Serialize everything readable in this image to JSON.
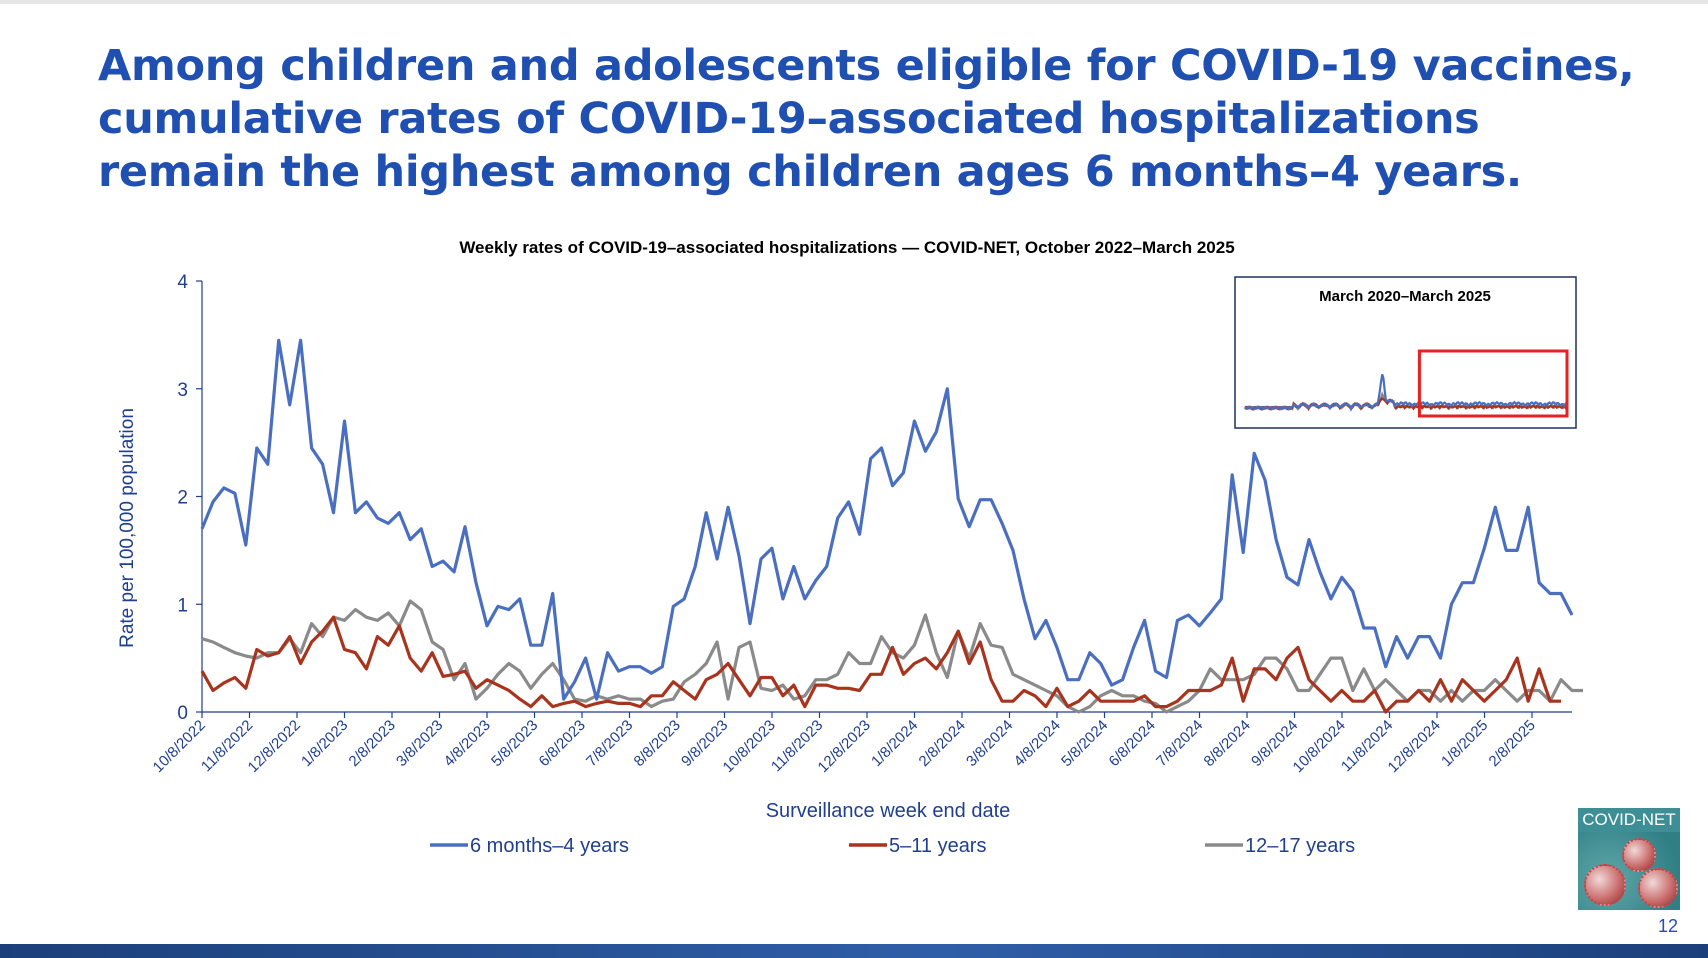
{
  "slide": {
    "headline_lines": [
      "Among children and adolescents eligible for COVID-19 vaccines,",
      "cumulative rates of COVID-19–associated hospitalizations",
      "remain the highest among children ages 6 months–4 years."
    ],
    "page_number": "12",
    "logo_text": "COVID-NET"
  },
  "chart_data": {
    "type": "line",
    "title": "Weekly rates of COVID-19–associated hospitalizations — COVID-NET, October 2022–March 2025",
    "xlabel": "Surveillance week end date",
    "ylabel": "Rate per 100,000 population",
    "ylim": [
      0,
      4
    ],
    "yticks": [
      "0",
      "1",
      "2",
      "3",
      "4"
    ],
    "xticks": [
      "10/8/2022",
      "11/8/2022",
      "12/8/2022",
      "1/8/2023",
      "2/8/2023",
      "3/8/2023",
      "4/8/2023",
      "5/8/2023",
      "6/8/2023",
      "7/8/2023",
      "8/8/2023",
      "9/8/2023",
      "10/8/2023",
      "11/8/2023",
      "12/8/2023",
      "1/8/2024",
      "2/8/2024",
      "3/8/2024",
      "4/8/2024",
      "5/8/2024",
      "6/8/2024",
      "7/8/2024",
      "8/8/2024",
      "9/8/2024",
      "10/8/2024",
      "11/8/2024",
      "12/8/2024",
      "1/8/2025",
      "2/8/2025"
    ],
    "legend_position": "bottom",
    "grid": false,
    "series": [
      {
        "name": "6 months–4 years",
        "color": "#4a6fc1",
        "values": [
          1.7,
          1.95,
          2.08,
          2.03,
          1.55,
          2.45,
          2.3,
          3.45,
          2.85,
          3.45,
          2.45,
          2.3,
          1.85,
          2.7,
          1.85,
          1.95,
          1.8,
          1.75,
          1.85,
          1.6,
          1.7,
          1.35,
          1.4,
          1.3,
          1.72,
          1.2,
          0.8,
          0.98,
          0.95,
          1.05,
          0.62,
          0.62,
          1.1,
          0.12,
          0.28,
          0.5,
          0.12,
          0.55,
          0.38,
          0.42,
          0.42,
          0.36,
          0.42,
          0.98,
          1.05,
          1.35,
          1.85,
          1.42,
          1.9,
          1.45,
          0.82,
          1.42,
          1.52,
          1.05,
          1.35,
          1.05,
          1.22,
          1.35,
          1.8,
          1.95,
          1.65,
          2.35,
          2.45,
          2.1,
          2.22,
          2.7,
          2.42,
          2.6,
          3.0,
          1.98,
          1.72,
          1.97,
          1.97,
          1.75,
          1.5,
          1.05,
          0.68,
          0.85,
          0.6,
          0.3,
          0.3,
          0.55,
          0.45,
          0.25,
          0.3,
          0.6,
          0.85,
          0.38,
          0.32,
          0.85,
          0.9,
          0.8,
          0.92,
          1.05,
          2.2,
          1.48,
          2.4,
          2.15,
          1.6,
          1.25,
          1.18,
          1.6,
          1.3,
          1.05,
          1.25,
          1.12,
          0.78,
          0.78,
          0.42,
          0.7,
          0.5,
          0.7,
          0.7,
          0.5,
          1.0,
          1.2,
          1.2,
          1.52,
          1.9,
          1.5,
          1.5,
          1.9,
          1.2,
          1.1,
          1.1,
          0.9
        ]
      },
      {
        "name": "5–11 years",
        "color": "#a8341e",
        "values": [
          0.38,
          0.2,
          0.27,
          0.32,
          0.22,
          0.58,
          0.52,
          0.55,
          0.7,
          0.45,
          0.65,
          0.75,
          0.88,
          0.58,
          0.55,
          0.4,
          0.7,
          0.62,
          0.8,
          0.5,
          0.38,
          0.55,
          0.33,
          0.35,
          0.38,
          0.22,
          0.3,
          0.25,
          0.2,
          0.12,
          0.05,
          0.15,
          0.05,
          0.08,
          0.1,
          0.05,
          0.08,
          0.1,
          0.08,
          0.08,
          0.05,
          0.15,
          0.15,
          0.28,
          0.2,
          0.12,
          0.3,
          0.35,
          0.45,
          0.3,
          0.15,
          0.32,
          0.32,
          0.15,
          0.25,
          0.05,
          0.25,
          0.25,
          0.22,
          0.22,
          0.2,
          0.35,
          0.35,
          0.6,
          0.35,
          0.45,
          0.5,
          0.4,
          0.55,
          0.75,
          0.45,
          0.65,
          0.3,
          0.1,
          0.1,
          0.2,
          0.15,
          0.05,
          0.22,
          0.05,
          0.1,
          0.2,
          0.1,
          0.1,
          0.1,
          0.1,
          0.15,
          0.05,
          0.05,
          0.1,
          0.2,
          0.2,
          0.2,
          0.25,
          0.5,
          0.1,
          0.4,
          0.4,
          0.3,
          0.5,
          0.6,
          0.3,
          0.2,
          0.1,
          0.2,
          0.1,
          0.1,
          0.2,
          0.0,
          0.1,
          0.1,
          0.2,
          0.1,
          0.3,
          0.1,
          0.3,
          0.2,
          0.1,
          0.2,
          0.3,
          0.5,
          0.1,
          0.4,
          0.1,
          0.1
        ]
      },
      {
        "name": "12–17 years",
        "color": "#8a8a8a",
        "values": [
          0.68,
          0.65,
          0.6,
          0.55,
          0.52,
          0.5,
          0.55,
          0.55,
          0.68,
          0.55,
          0.82,
          0.7,
          0.88,
          0.85,
          0.95,
          0.88,
          0.85,
          0.92,
          0.8,
          1.03,
          0.95,
          0.65,
          0.58,
          0.3,
          0.45,
          0.12,
          0.22,
          0.35,
          0.45,
          0.38,
          0.22,
          0.35,
          0.45,
          0.3,
          0.12,
          0.1,
          0.15,
          0.12,
          0.15,
          0.12,
          0.12,
          0.05,
          0.1,
          0.12,
          0.28,
          0.35,
          0.45,
          0.65,
          0.12,
          0.6,
          0.65,
          0.22,
          0.2,
          0.25,
          0.12,
          0.15,
          0.3,
          0.3,
          0.35,
          0.55,
          0.45,
          0.45,
          0.7,
          0.55,
          0.5,
          0.62,
          0.9,
          0.55,
          0.32,
          0.75,
          0.5,
          0.82,
          0.62,
          0.6,
          0.35,
          0.3,
          0.25,
          0.2,
          0.15,
          0.05,
          0.0,
          0.05,
          0.15,
          0.2,
          0.15,
          0.15,
          0.1,
          0.08,
          0.0,
          0.05,
          0.1,
          0.2,
          0.4,
          0.3,
          0.3,
          0.3,
          0.35,
          0.5,
          0.5,
          0.4,
          0.2,
          0.2,
          0.35,
          0.5,
          0.5,
          0.2,
          0.4,
          0.2,
          0.3,
          0.2,
          0.1,
          0.2,
          0.2,
          0.1,
          0.2,
          0.1,
          0.2,
          0.2,
          0.3,
          0.2,
          0.1,
          0.2,
          0.2,
          0.1,
          0.3,
          0.2,
          0.2
        ]
      }
    ],
    "inset": {
      "title": "March 2020–March 2025",
      "highlight_color": "#e82020",
      "highlight_start_fraction": 0.54,
      "series_color_order": [
        "#4a6fc1",
        "#a8341e",
        "#8a8a8a"
      ]
    }
  }
}
